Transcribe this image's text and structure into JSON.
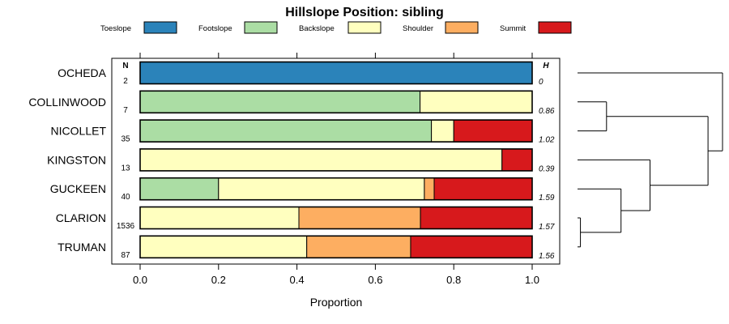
{
  "chart_data": {
    "type": "bar",
    "subtype": "stacked-horizontal-proportion",
    "title": "Hillslope Position: sibling",
    "xlabel": "Proportion",
    "xlim": [
      0,
      1
    ],
    "x_ticks": [
      "0.0",
      "0.2",
      "0.4",
      "0.6",
      "0.8",
      "1.0"
    ],
    "legend_position": "top",
    "n_header": "N",
    "h_header": "H",
    "series": [
      {
        "name": "Toeslope",
        "color": "#2b83ba"
      },
      {
        "name": "Footslope",
        "color": "#abdda4"
      },
      {
        "name": "Backslope",
        "color": "#ffffbf"
      },
      {
        "name": "Shoulder",
        "color": "#fdae61"
      },
      {
        "name": "Summit",
        "color": "#d7191c"
      }
    ],
    "categories": [
      "OCHEDA",
      "COLLINWOOD",
      "NICOLLET",
      "KINGSTON",
      "GUCKEEN",
      "CLARION",
      "TRUMAN"
    ],
    "rows": [
      {
        "name": "OCHEDA",
        "n": "2",
        "h": "0",
        "values": [
          1.0,
          0.0,
          0.0,
          0.0,
          0.0
        ]
      },
      {
        "name": "COLLINWOOD",
        "n": "7",
        "h": "0.86",
        "values": [
          0.0,
          0.714,
          0.286,
          0.0,
          0.0
        ]
      },
      {
        "name": "NICOLLET",
        "n": "35",
        "h": "1.02",
        "values": [
          0.0,
          0.743,
          0.057,
          0.0,
          0.2
        ]
      },
      {
        "name": "KINGSTON",
        "n": "13",
        "h": "0.39",
        "values": [
          0.0,
          0.0,
          0.923,
          0.0,
          0.077
        ]
      },
      {
        "name": "GUCKEEN",
        "n": "40",
        "h": "1.59",
        "values": [
          0.0,
          0.2,
          0.525,
          0.025,
          0.25
        ]
      },
      {
        "name": "CLARION",
        "n": "1536",
        "h": "1.57",
        "values": [
          0.0,
          0.0,
          0.405,
          0.31,
          0.285
        ]
      },
      {
        "name": "TRUMAN",
        "n": "87",
        "h": "1.56",
        "values": [
          0.0,
          0.0,
          0.425,
          0.265,
          0.31
        ]
      }
    ],
    "dendrogram": {
      "leaves": [
        "OCHEDA",
        "COLLINWOOD",
        "NICOLLET",
        "KINGSTON",
        "GUCKEEN",
        "CLARION",
        "TRUMAN"
      ],
      "merges": [
        {
          "a": "CLARION",
          "b": "TRUMAN",
          "height": 0.02
        },
        {
          "a": "GUCKEEN",
          "b": "m0",
          "height": 0.3
        },
        {
          "a": "KINGSTON",
          "b": "m1",
          "height": 0.5
        },
        {
          "a": "COLLINWOOD",
          "b": "NICOLLET",
          "height": 0.2
        },
        {
          "a": "m3",
          "b": "m2",
          "height": 0.9
        },
        {
          "a": "OCHEDA",
          "b": "m4",
          "height": 1.0
        }
      ]
    }
  }
}
